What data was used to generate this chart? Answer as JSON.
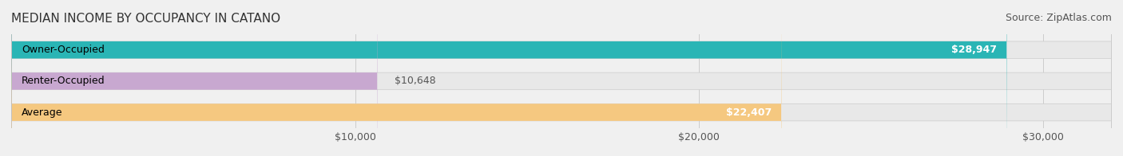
{
  "title": "MEDIAN INCOME BY OCCUPANCY IN CATANO",
  "source": "Source: ZipAtlas.com",
  "categories": [
    "Owner-Occupied",
    "Renter-Occupied",
    "Average"
  ],
  "values": [
    28947,
    10648,
    22407
  ],
  "bar_colors": [
    "#2ab5b5",
    "#c8a8d0",
    "#f5c880"
  ],
  "bar_edge_colors": [
    "#2ab5b5",
    "#c8a8d0",
    "#f5c880"
  ],
  "value_labels": [
    "$28,947",
    "$10,648",
    "$22,407"
  ],
  "label_inside": [
    true,
    false,
    true
  ],
  "xlim": [
    0,
    32000
  ],
  "xticks": [
    10000,
    20000,
    30000
  ],
  "xtick_labels": [
    "$10,000",
    "$20,000",
    "$30,000"
  ],
  "background_color": "#f0f0f0",
  "bar_background_color": "#e8e8e8",
  "title_fontsize": 11,
  "source_fontsize": 9,
  "label_fontsize": 9,
  "tick_fontsize": 9,
  "bar_height": 0.55,
  "bar_gap": 0.15
}
